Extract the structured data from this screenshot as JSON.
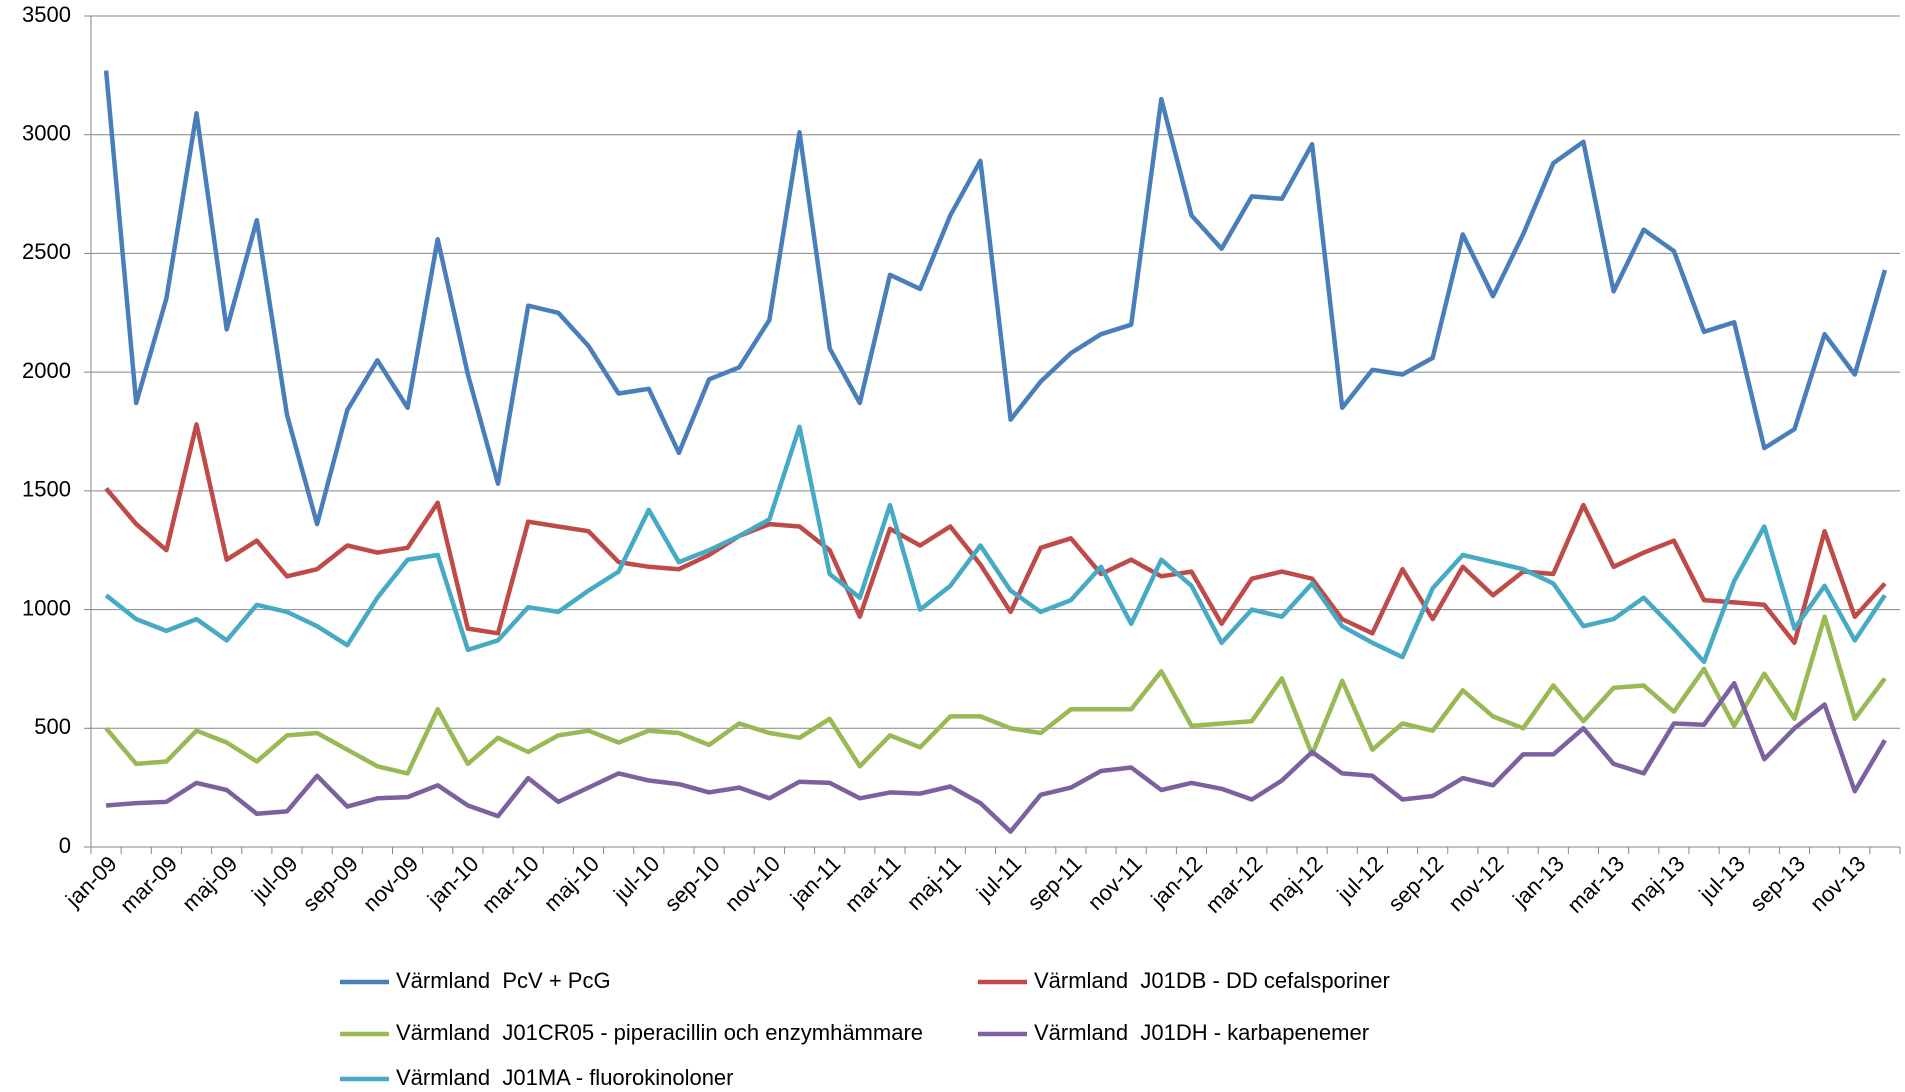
{
  "chart_data": {
    "type": "line",
    "categories": [
      "jan-09",
      null,
      "mar-09",
      null,
      "maj-09",
      null,
      "jul-09",
      null,
      "sep-09",
      null,
      "nov-09",
      null,
      "jan-10",
      null,
      "mar-10",
      null,
      "maj-10",
      null,
      "jul-10",
      null,
      "sep-10",
      null,
      "nov-10",
      null,
      "jan-11",
      null,
      "mar-11",
      null,
      "maj-11",
      null,
      "jul-11",
      null,
      "sep-11",
      null,
      "nov-11",
      null,
      "jan-12",
      null,
      "mar-12",
      null,
      "maj-12",
      null,
      "jul-12",
      null,
      "sep-12",
      null,
      "nov-12",
      null,
      "jan-13",
      null,
      "mar-13",
      null,
      "maj-13",
      null,
      "jul-13",
      null,
      "sep-13",
      null,
      "nov-13",
      null
    ],
    "ylim": [
      0,
      3500
    ],
    "yticks": [
      0,
      500,
      1000,
      1500,
      2000,
      2500,
      3000,
      3500
    ],
    "grid": true,
    "series": [
      {
        "name": "Värmland  PcV + PcG",
        "color": "#4a7ebb",
        "values": [
          3270,
          1870,
          2310,
          3090,
          2180,
          2640,
          1820,
          1360,
          1840,
          2050,
          1850,
          2560,
          1990,
          1530,
          2280,
          2250,
          2110,
          1910,
          1930,
          1660,
          1970,
          2020,
          2220,
          3010,
          2100,
          1870,
          2410,
          2350,
          2660,
          2890,
          1800,
          1960,
          2080,
          2160,
          2200,
          3150,
          2660,
          2520,
          2740,
          2730,
          2960,
          1850,
          2010,
          1990,
          2060,
          2580,
          2320,
          2580,
          2880,
          2970,
          2340,
          2600,
          2510,
          2170,
          2210,
          1680,
          1760,
          2160,
          1990,
          2430
        ]
      },
      {
        "name": "Värmland  J01DB - DD cefalsporiner",
        "color": "#be4b48",
        "values": [
          1510,
          1360,
          1250,
          1780,
          1210,
          1290,
          1140,
          1170,
          1270,
          1240,
          1260,
          1450,
          920,
          900,
          1370,
          1350,
          1330,
          1200,
          1180,
          1170,
          1230,
          1310,
          1360,
          1350,
          1250,
          970,
          1340,
          1270,
          1350,
          1190,
          990,
          1260,
          1300,
          1150,
          1210,
          1140,
          1160,
          940,
          1130,
          1160,
          1130,
          960,
          900,
          1170,
          960,
          1180,
          1060,
          1160,
          1150,
          1440,
          1180,
          1240,
          1290,
          1040,
          1030,
          1020,
          860,
          1330,
          970,
          1110
        ]
      },
      {
        "name": "Värmland  J01CR05 - piperacillin och enzymhämmare",
        "color": "#98b954",
        "values": [
          500,
          350,
          360,
          490,
          440,
          360,
          470,
          480,
          410,
          340,
          310,
          580,
          350,
          460,
          400,
          470,
          490,
          440,
          490,
          480,
          430,
          520,
          480,
          460,
          540,
          340,
          470,
          420,
          550,
          550,
          500,
          480,
          580,
          580,
          580,
          740,
          510,
          520,
          530,
          710,
          390,
          700,
          410,
          520,
          490,
          660,
          550,
          500,
          680,
          530,
          670,
          680,
          570,
          750,
          510,
          730,
          540,
          970,
          540,
          710
        ]
      },
      {
        "name": "Värmland  J01DH - karbapenemer",
        "color": "#7d60a0",
        "values": [
          175,
          185,
          190,
          270,
          240,
          140,
          150,
          300,
          170,
          205,
          210,
          260,
          175,
          130,
          290,
          190,
          250,
          310,
          280,
          265,
          230,
          250,
          205,
          275,
          270,
          205,
          230,
          225,
          255,
          185,
          65,
          220,
          250,
          320,
          335,
          240,
          270,
          245,
          200,
          280,
          400,
          310,
          300,
          200,
          215,
          290,
          260,
          390,
          390,
          500,
          350,
          310,
          520,
          515,
          690,
          370,
          500,
          600,
          235,
          450
        ]
      },
      {
        "name": "Värmland  J01MA - fluorokinoloner",
        "color": "#46aac5",
        "values": [
          1060,
          960,
          910,
          960,
          870,
          1020,
          990,
          930,
          850,
          1050,
          1210,
          1230,
          830,
          870,
          1010,
          990,
          1080,
          1160,
          1420,
          1200,
          1250,
          1310,
          1380,
          1770,
          1150,
          1050,
          1440,
          1000,
          1100,
          1270,
          1080,
          990,
          1040,
          1180,
          940,
          1210,
          1100,
          860,
          1000,
          970,
          1110,
          930,
          860,
          800,
          1090,
          1230,
          1200,
          1170,
          1110,
          930,
          960,
          1050,
          920,
          780,
          1120,
          1350,
          920,
          1100,
          870,
          1060
        ]
      }
    ]
  }
}
